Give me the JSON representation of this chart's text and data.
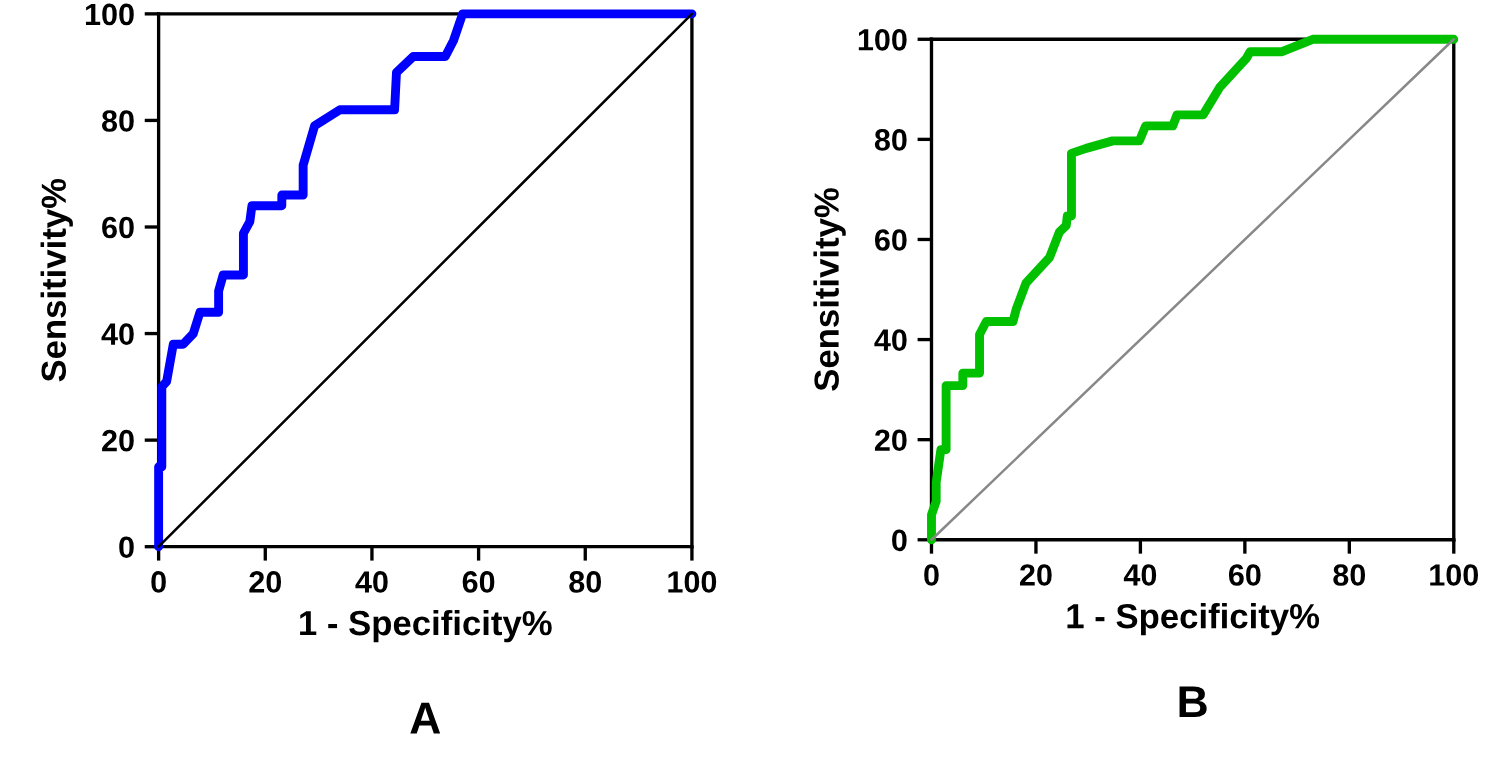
{
  "chart_data": [
    {
      "type": "line",
      "xlabel": "1 - Specificity%",
      "ylabel": "Sensitivity%",
      "annotations": [
        "A"
      ],
      "xlim": [
        0,
        100
      ],
      "ylim": [
        0,
        100
      ],
      "xticks": [
        0,
        20,
        40,
        60,
        80,
        100
      ],
      "yticks": [
        0,
        20,
        40,
        60,
        80,
        100
      ],
      "grid": false,
      "legend": false,
      "series": [
        {
          "color": "#0000ff",
          "x": [
            0,
            0,
            0.6,
            0.6,
            1.5,
            2.75,
            4.6,
            6.5,
            7.75,
            11.25,
            11.25,
            12.1,
            15.9,
            15.9,
            17.1,
            17.5,
            23.1,
            23.1,
            27.1,
            27.1,
            29.25,
            34,
            44.25,
            44.6,
            47.75,
            53.75,
            55.3,
            57,
            100
          ],
          "values": [
            0,
            15,
            15,
            30,
            31,
            38,
            38,
            40,
            44,
            44,
            48,
            51,
            51,
            58.8,
            61,
            64,
            64,
            66,
            66,
            71.6,
            79,
            82,
            82,
            89,
            92,
            92,
            95,
            100,
            100
          ]
        },
        {
          "color": "#000000",
          "x": [
            0,
            100
          ],
          "values": [
            0,
            100
          ]
        }
      ]
    },
    {
      "type": "line",
      "xlabel": "1 - Specificity%",
      "ylabel": "Sensitivity%",
      "annotations": [
        "B"
      ],
      "xlim": [
        0,
        100
      ],
      "ylim": [
        0,
        100
      ],
      "xticks": [
        0,
        20,
        40,
        60,
        80,
        100
      ],
      "yticks": [
        0,
        20,
        40,
        60,
        80,
        100
      ],
      "grid": false,
      "legend": false,
      "series": [
        {
          "color": "#00c000",
          "x": [
            0,
            0,
            0.9,
            0.9,
            1.8,
            2.8,
            2.8,
            6,
            6,
            9.2,
            9.2,
            10.5,
            15.6,
            16.2,
            18.1,
            22.6,
            24.5,
            25.8,
            26,
            26.8,
            26.8,
            29.6,
            34.7,
            39.8,
            41,
            46.2,
            47,
            52,
            55.2,
            60.3,
            61,
            67,
            73,
            100
          ],
          "values": [
            0,
            5,
            7.7,
            11.5,
            18,
            18,
            30.8,
            30.8,
            33.3,
            33.3,
            41,
            43.6,
            43.6,
            46,
            51.3,
            56.4,
            61.5,
            62.8,
            64.7,
            64.7,
            77.2,
            78.2,
            79.7,
            79.7,
            82.7,
            82.7,
            84.9,
            84.9,
            90.4,
            96.2,
            97.5,
            97.5,
            100,
            100
          ]
        },
        {
          "color": "#888888",
          "x": [
            0,
            100
          ],
          "values": [
            0,
            100
          ]
        }
      ]
    }
  ]
}
